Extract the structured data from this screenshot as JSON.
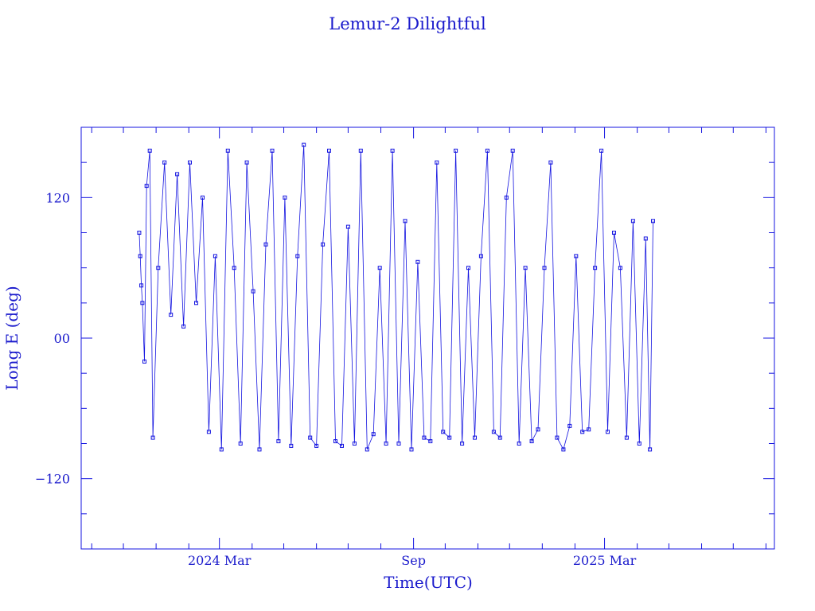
{
  "colors": {
    "plot": "#1414e0",
    "text": "#1a1acc",
    "background": "#ffffff"
  },
  "chart_data": {
    "type": "scatter",
    "title": "Lemur-2 Dilightful",
    "xlabel": "Time(UTC)",
    "ylabel": "Long E (deg)",
    "xlim": [
      "2023-10-22",
      "2025-08-09"
    ],
    "ylim": [
      -180,
      180
    ],
    "x_tick_labels": [
      {
        "date": "2024-03-01",
        "label": "2024 Mar"
      },
      {
        "date": "2024-09-01",
        "label": "Sep"
      },
      {
        "date": "2025-03-01",
        "label": "2025 Mar"
      }
    ],
    "y_ticks": [
      -120,
      0,
      120
    ],
    "y_tick_labels": [
      "−120",
      "00",
      "120"
    ],
    "grid": false,
    "marker": "open-square-with-connecting-line",
    "series": [
      {
        "x": [
          "2023-12-16",
          "2023-12-17",
          "2023-12-18",
          "2023-12-19",
          "2023-12-21",
          "2023-12-23",
          "2023-12-26",
          "2023-12-29",
          "2024-01-03",
          "2024-01-09",
          "2024-01-15",
          "2024-01-21",
          "2024-01-27",
          "2024-02-02",
          "2024-02-08",
          "2024-02-14",
          "2024-02-20",
          "2024-02-26",
          "2024-03-03",
          "2024-03-09",
          "2024-03-15",
          "2024-03-21",
          "2024-03-27",
          "2024-04-02",
          "2024-04-08",
          "2024-04-14",
          "2024-04-20",
          "2024-04-26",
          "2024-05-02",
          "2024-05-08",
          "2024-05-14",
          "2024-05-20",
          "2024-05-26",
          "2024-06-01",
          "2024-06-07",
          "2024-06-13",
          "2024-06-19",
          "2024-06-25",
          "2024-07-01",
          "2024-07-07",
          "2024-07-13",
          "2024-07-19",
          "2024-07-25",
          "2024-07-31",
          "2024-08-06",
          "2024-08-12",
          "2024-08-18",
          "2024-08-24",
          "2024-08-30",
          "2024-09-05",
          "2024-09-11",
          "2024-09-17",
          "2024-09-23",
          "2024-09-29",
          "2024-10-05",
          "2024-10-11",
          "2024-10-17",
          "2024-10-23",
          "2024-10-29",
          "2024-11-04",
          "2024-11-10",
          "2024-11-16",
          "2024-11-22",
          "2024-11-28",
          "2024-12-04",
          "2024-12-10",
          "2024-12-16",
          "2024-12-22",
          "2024-12-28",
          "2025-01-03",
          "2025-01-09",
          "2025-01-15",
          "2025-01-21",
          "2025-01-27",
          "2025-02-02",
          "2025-02-08",
          "2025-02-14",
          "2025-02-20",
          "2025-02-26",
          "2025-03-04",
          "2025-03-10",
          "2025-03-16",
          "2025-03-22",
          "2025-03-28",
          "2025-04-03",
          "2025-04-09",
          "2025-04-13",
          "2025-04-16"
        ],
        "y": [
          90,
          70,
          45,
          30,
          -20,
          130,
          160,
          -85,
          60,
          150,
          20,
          140,
          10,
          150,
          30,
          120,
          -80,
          70,
          -95,
          160,
          60,
          -90,
          150,
          40,
          -95,
          80,
          160,
          -88,
          120,
          -92,
          70,
          165,
          -85,
          -92,
          80,
          160,
          -88,
          -92,
          95,
          -90,
          160,
          -95,
          -82,
          60,
          -90,
          160,
          -90,
          100,
          -95,
          65,
          -85,
          -88,
          150,
          -80,
          -85,
          160,
          -90,
          60,
          -85,
          70,
          160,
          -80,
          -85,
          120,
          160,
          -90,
          60,
          -88,
          -78,
          60,
          150,
          -85,
          -95,
          -75,
          70,
          -80,
          -78,
          60,
          160,
          -80,
          90,
          60,
          -85,
          100,
          -90,
          85,
          -95,
          100
        ]
      }
    ]
  }
}
